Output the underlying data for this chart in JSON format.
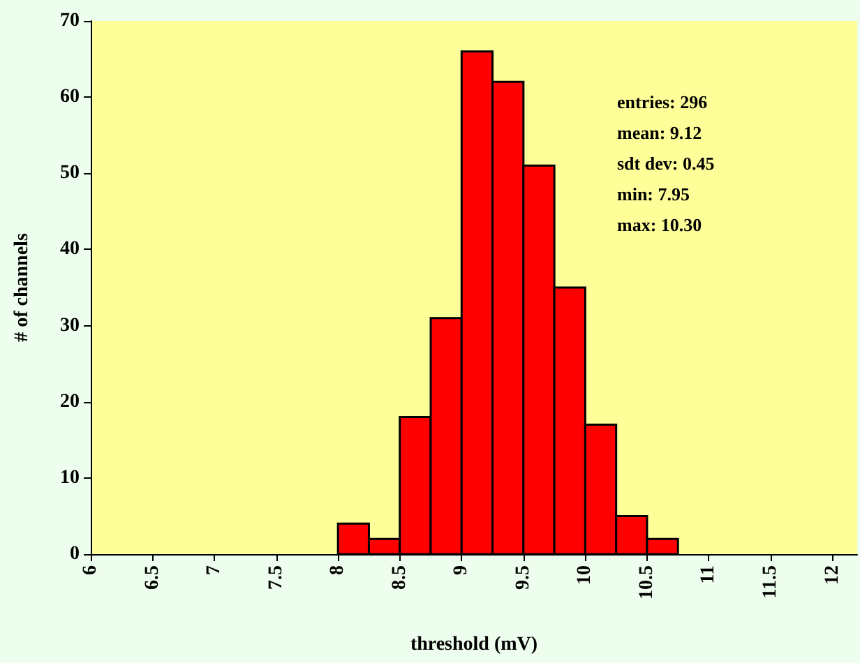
{
  "chart_data": {
    "type": "histogram",
    "xlabel": "threshold (mV)",
    "ylabel": "# of channels",
    "bins": [
      8,
      8.25,
      8.5,
      8.75,
      9,
      9.25,
      9.5,
      9.75,
      10,
      10.25,
      10.5,
      10.75
    ],
    "values": [
      4,
      2,
      18,
      31,
      66,
      62,
      51,
      35,
      17,
      5,
      2
    ],
    "color": "#ff0000",
    "xlim": [
      6,
      12.2
    ],
    "xticks": [
      6,
      6.5,
      7,
      7.5,
      8,
      8.5,
      9,
      9.5,
      10,
      10.5,
      11,
      11.5,
      12
    ],
    "ylim": [
      0,
      70
    ],
    "yticks": [
      0,
      10,
      20,
      30,
      40,
      50,
      60,
      70
    ],
    "annotations": [
      "entries: 296",
      "mean: 9.12",
      "sdt dev: 0.45",
      "min: 7.95",
      "max: 10.30"
    ]
  }
}
